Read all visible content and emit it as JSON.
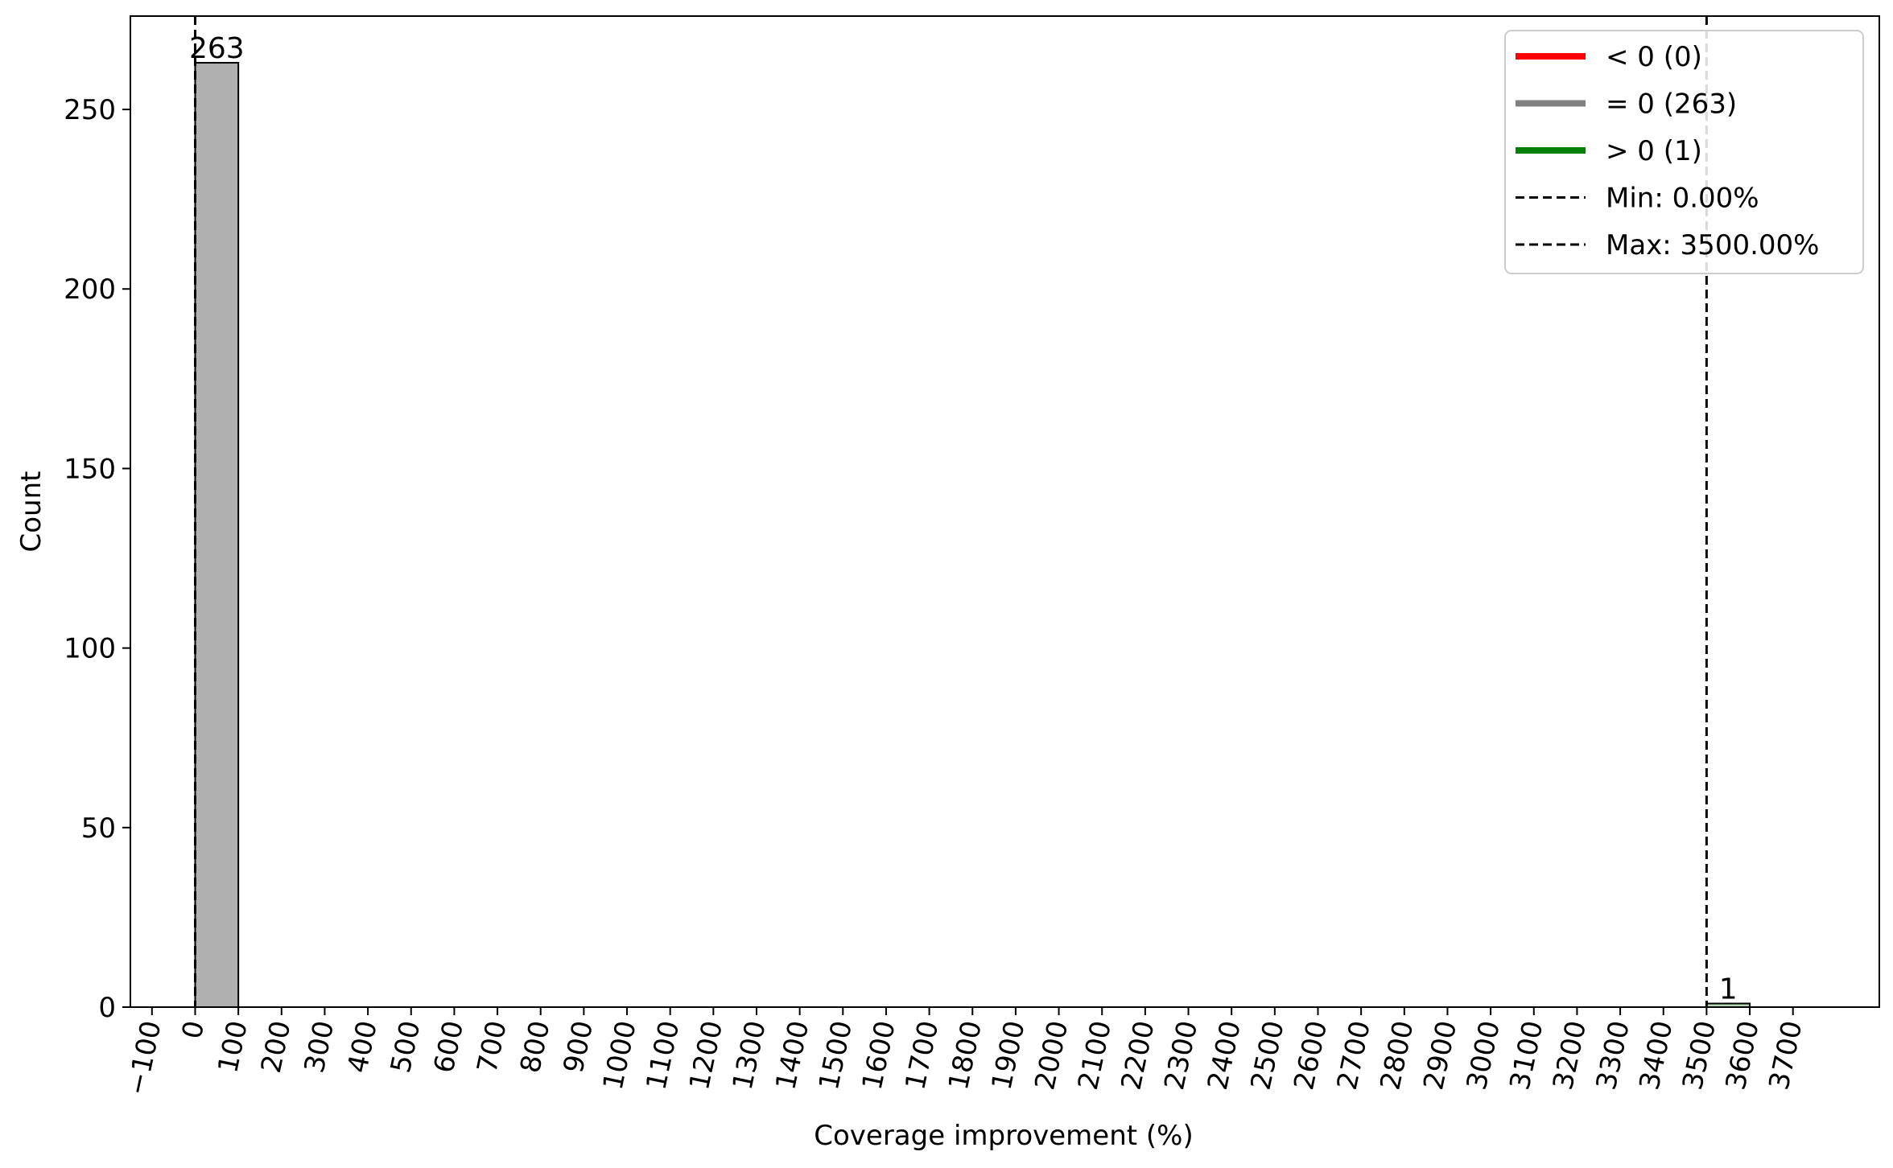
{
  "chart_data": {
    "type": "bar",
    "title": "",
    "xlabel": "Coverage improvement (%)",
    "ylabel": "Count",
    "xlim": [
      -150,
      3900
    ],
    "ylim": [
      0,
      276
    ],
    "x_ticks": [
      -100,
      0,
      100,
      200,
      300,
      400,
      500,
      600,
      700,
      800,
      900,
      1000,
      1100,
      1200,
      1300,
      1400,
      1500,
      1600,
      1700,
      1800,
      1900,
      2000,
      2100,
      2200,
      2300,
      2400,
      2500,
      2600,
      2700,
      2800,
      2900,
      3000,
      3100,
      3200,
      3300,
      3400,
      3500,
      3600,
      3700
    ],
    "x_tick_labels": [
      "−100",
      "0",
      "100",
      "200",
      "300",
      "400",
      "500",
      "600",
      "700",
      "800",
      "900",
      "1000",
      "1100",
      "1200",
      "1300",
      "1400",
      "1500",
      "1600",
      "1700",
      "1800",
      "1900",
      "2000",
      "2100",
      "2200",
      "2300",
      "2400",
      "2500",
      "2600",
      "2700",
      "2800",
      "2900",
      "3000",
      "3100",
      "3200",
      "3300",
      "3400",
      "3500",
      "3600",
      "3700"
    ],
    "y_ticks": [
      0,
      50,
      100,
      150,
      200,
      250
    ],
    "y_tick_labels": [
      "0",
      "50",
      "100",
      "150",
      "200",
      "250"
    ],
    "bars": [
      {
        "bin_start": 0,
        "bin_end": 100,
        "value": 263,
        "label": "263",
        "group": "= 0",
        "fill": "#b0b0b0",
        "edge": "#000000"
      },
      {
        "bin_start": 3500,
        "bin_end": 3600,
        "value": 1,
        "label": "1",
        "group": "> 0",
        "fill": "#b3d9b3",
        "edge": "#000000"
      }
    ],
    "vlines": [
      {
        "x": 0,
        "label": "Min: 0.00%"
      },
      {
        "x": 3500,
        "label": "Max: 3500.00%"
      }
    ],
    "legend": {
      "placement": "top-right",
      "entries": [
        {
          "type": "line",
          "style": "solid",
          "color": "#ff0000",
          "label": "< 0 (0)"
        },
        {
          "type": "line",
          "style": "solid",
          "color": "#808080",
          "label": "= 0 (263)"
        },
        {
          "type": "line",
          "style": "solid",
          "color": "#008000",
          "label": "> 0 (1)"
        },
        {
          "type": "line",
          "style": "dashed",
          "color": "#000000",
          "label": "Min: 0.00%"
        },
        {
          "type": "line",
          "style": "dashed",
          "color": "#000000",
          "label": "Max: 3500.00%"
        }
      ]
    },
    "grid": false
  }
}
